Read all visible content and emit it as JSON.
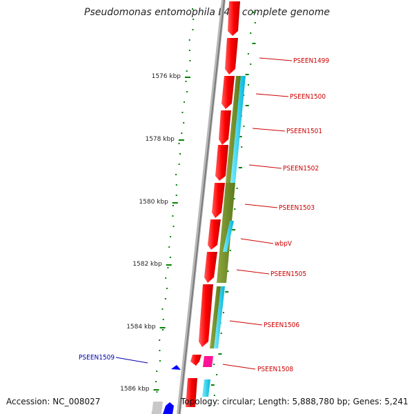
{
  "title": "Pseudomonas entomophila L48, complete genome",
  "footer": {
    "accession": "Accession: NC_008027",
    "summary": "Topology: circular; Length: 5,888,780 bp; Genes: 5,241"
  },
  "colors": {
    "forward_cds": "#ff0000",
    "reverse_cds": "#0000ff",
    "cog_olive": "#6b8e23",
    "cog_cyan": "#00c8e6",
    "pink": "#ff1493",
    "backbone": "#888888",
    "gc_dots": "#008000",
    "label_red": "#cc0000",
    "label_blue": "#0000aa"
  },
  "kbp_labels": [
    "1576 kbp",
    "1578 kbp",
    "1580 kbp",
    "1582 kbp",
    "1584 kbp",
    "1586 kbp"
  ],
  "gene_labels": [
    {
      "name": "PSEEN1499",
      "strand": "forward"
    },
    {
      "name": "PSEEN1500",
      "strand": "forward"
    },
    {
      "name": "PSEEN1501",
      "strand": "forward"
    },
    {
      "name": "PSEEN1502",
      "strand": "forward"
    },
    {
      "name": "PSEEN1503",
      "strand": "forward"
    },
    {
      "name": "wbpV",
      "strand": "forward"
    },
    {
      "name": "PSEEN1505",
      "strand": "forward"
    },
    {
      "name": "PSEEN1506",
      "strand": "forward"
    },
    {
      "name": "PSEEN1508",
      "strand": "forward"
    },
    {
      "name": "PSEEN1509",
      "strand": "reverse"
    }
  ]
}
